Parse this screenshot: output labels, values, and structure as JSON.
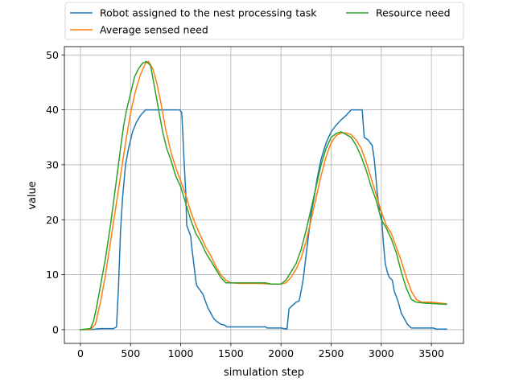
{
  "chart_data": {
    "type": "line",
    "title": "",
    "xlabel": "simulation step",
    "ylabel": "value",
    "xlim": [
      -160,
      3820
    ],
    "ylim": [
      -2.5,
      51.5
    ],
    "xticks": [
      0,
      500,
      1000,
      1500,
      2000,
      2500,
      3000,
      3500
    ],
    "yticks": [
      0,
      10,
      20,
      30,
      40,
      50
    ],
    "grid": true,
    "legend_position": "top-center, above plot",
    "legend_columns": 2,
    "series": [
      {
        "name": "Robot assigned to the nest processing task",
        "color": "#1f77b4",
        "points": [
          [
            0,
            0
          ],
          [
            100,
            0
          ],
          [
            200,
            0.2
          ],
          [
            330,
            0.2
          ],
          [
            360,
            0.5
          ],
          [
            380,
            8
          ],
          [
            400,
            18
          ],
          [
            420,
            24
          ],
          [
            450,
            30
          ],
          [
            480,
            33
          ],
          [
            520,
            36
          ],
          [
            560,
            37.8
          ],
          [
            600,
            39
          ],
          [
            650,
            40
          ],
          [
            700,
            40
          ],
          [
            750,
            40
          ],
          [
            800,
            40
          ],
          [
            850,
            40
          ],
          [
            900,
            40
          ],
          [
            950,
            40
          ],
          [
            990,
            40
          ],
          [
            1010,
            39.5
          ],
          [
            1020,
            36
          ],
          [
            1030,
            32
          ],
          [
            1050,
            25
          ],
          [
            1060,
            19
          ],
          [
            1080,
            18
          ],
          [
            1100,
            17
          ],
          [
            1110,
            15
          ],
          [
            1130,
            12
          ],
          [
            1150,
            9
          ],
          [
            1160,
            8
          ],
          [
            1200,
            7
          ],
          [
            1220,
            6.5
          ],
          [
            1250,
            5
          ],
          [
            1270,
            4
          ],
          [
            1300,
            3
          ],
          [
            1330,
            2
          ],
          [
            1360,
            1.5
          ],
          [
            1400,
            1
          ],
          [
            1440,
            0.8
          ],
          [
            1460,
            0.5
          ],
          [
            1550,
            0.5
          ],
          [
            1700,
            0.5
          ],
          [
            1850,
            0.5
          ],
          [
            1860,
            0.3
          ],
          [
            2000,
            0.3
          ],
          [
            2060,
            0.1
          ],
          [
            2070,
            2
          ],
          [
            2080,
            3.8
          ],
          [
            2120,
            4.5
          ],
          [
            2150,
            5
          ],
          [
            2180,
            5.2
          ],
          [
            2190,
            6
          ],
          [
            2210,
            8
          ],
          [
            2220,
            9
          ],
          [
            2240,
            12
          ],
          [
            2260,
            15
          ],
          [
            2280,
            18
          ],
          [
            2300,
            21
          ],
          [
            2330,
            24
          ],
          [
            2360,
            27.5
          ],
          [
            2400,
            31
          ],
          [
            2450,
            34
          ],
          [
            2500,
            36
          ],
          [
            2550,
            37.2
          ],
          [
            2600,
            38.2
          ],
          [
            2650,
            39
          ],
          [
            2700,
            40
          ],
          [
            2750,
            40
          ],
          [
            2790,
            40
          ],
          [
            2810,
            40
          ],
          [
            2830,
            35
          ],
          [
            2870,
            34.5
          ],
          [
            2910,
            33.5
          ],
          [
            2930,
            31
          ],
          [
            2960,
            25
          ],
          [
            2980,
            22
          ],
          [
            3000,
            21.5
          ],
          [
            3020,
            16
          ],
          [
            3040,
            12
          ],
          [
            3060,
            10.5
          ],
          [
            3080,
            9.5
          ],
          [
            3110,
            9
          ],
          [
            3130,
            7
          ],
          [
            3150,
            6
          ],
          [
            3170,
            5
          ],
          [
            3200,
            3
          ],
          [
            3230,
            2
          ],
          [
            3260,
            1
          ],
          [
            3300,
            0.3
          ],
          [
            3400,
            0.3
          ],
          [
            3520,
            0.3
          ],
          [
            3550,
            0.1
          ],
          [
            3650,
            0.1
          ]
        ]
      },
      {
        "name": "Average sensed need",
        "color": "#ff7f0e",
        "points": [
          [
            0,
            0
          ],
          [
            100,
            0
          ],
          [
            150,
            1
          ],
          [
            200,
            5
          ],
          [
            250,
            10
          ],
          [
            300,
            16
          ],
          [
            350,
            22
          ],
          [
            400,
            28
          ],
          [
            450,
            34
          ],
          [
            500,
            39.5
          ],
          [
            550,
            43.5
          ],
          [
            600,
            46.5
          ],
          [
            650,
            48.5
          ],
          [
            680,
            48.8
          ],
          [
            720,
            47.5
          ],
          [
            760,
            45
          ],
          [
            800,
            41.5
          ],
          [
            850,
            36.5
          ],
          [
            900,
            32.5
          ],
          [
            950,
            29.5
          ],
          [
            1000,
            27
          ],
          [
            1050,
            24.5
          ],
          [
            1100,
            21.5
          ],
          [
            1150,
            19
          ],
          [
            1200,
            17
          ],
          [
            1250,
            15
          ],
          [
            1300,
            13.5
          ],
          [
            1350,
            11.5
          ],
          [
            1400,
            10
          ],
          [
            1450,
            9
          ],
          [
            1500,
            8.5
          ],
          [
            1600,
            8.4
          ],
          [
            1700,
            8.4
          ],
          [
            1800,
            8.4
          ],
          [
            1900,
            8.3
          ],
          [
            2000,
            8.3
          ],
          [
            2050,
            8.5
          ],
          [
            2100,
            9.5
          ],
          [
            2150,
            11
          ],
          [
            2200,
            13
          ],
          [
            2250,
            16
          ],
          [
            2300,
            20
          ],
          [
            2350,
            24
          ],
          [
            2400,
            28
          ],
          [
            2450,
            31.5
          ],
          [
            2500,
            34
          ],
          [
            2550,
            35.3
          ],
          [
            2600,
            35.8
          ],
          [
            2650,
            35.8
          ],
          [
            2700,
            35.5
          ],
          [
            2750,
            34.5
          ],
          [
            2800,
            33
          ],
          [
            2850,
            30.5
          ],
          [
            2900,
            27.5
          ],
          [
            2950,
            24.5
          ],
          [
            3000,
            21.5
          ],
          [
            3050,
            19
          ],
          [
            3100,
            17.5
          ],
          [
            3150,
            15
          ],
          [
            3200,
            12.5
          ],
          [
            3250,
            9.5
          ],
          [
            3300,
            7
          ],
          [
            3350,
            5.5
          ],
          [
            3400,
            5
          ],
          [
            3500,
            5
          ],
          [
            3550,
            4.9
          ],
          [
            3650,
            4.7
          ]
        ]
      },
      {
        "name": "Resource need",
        "color": "#2ca02c",
        "points": [
          [
            0,
            0
          ],
          [
            100,
            0.2
          ],
          [
            130,
            1.5
          ],
          [
            160,
            4
          ],
          [
            200,
            8
          ],
          [
            250,
            13
          ],
          [
            300,
            19
          ],
          [
            350,
            26
          ],
          [
            400,
            33
          ],
          [
            430,
            37
          ],
          [
            460,
            40
          ],
          [
            500,
            43
          ],
          [
            540,
            46
          ],
          [
            580,
            47.5
          ],
          [
            620,
            48.5
          ],
          [
            660,
            48.8
          ],
          [
            700,
            48
          ],
          [
            740,
            44
          ],
          [
            780,
            40
          ],
          [
            820,
            36
          ],
          [
            860,
            33
          ],
          [
            900,
            31
          ],
          [
            950,
            28
          ],
          [
            1000,
            26
          ],
          [
            1050,
            23
          ],
          [
            1100,
            20
          ],
          [
            1150,
            17.5
          ],
          [
            1200,
            16
          ],
          [
            1250,
            14
          ],
          [
            1300,
            12.5
          ],
          [
            1350,
            11
          ],
          [
            1400,
            9.5
          ],
          [
            1450,
            8.5
          ],
          [
            1550,
            8.5
          ],
          [
            1650,
            8.5
          ],
          [
            1750,
            8.5
          ],
          [
            1850,
            8.5
          ],
          [
            1900,
            8.3
          ],
          [
            2000,
            8.3
          ],
          [
            2050,
            9
          ],
          [
            2100,
            10.5
          ],
          [
            2150,
            12
          ],
          [
            2200,
            14.5
          ],
          [
            2250,
            18
          ],
          [
            2300,
            22
          ],
          [
            2350,
            26
          ],
          [
            2400,
            30
          ],
          [
            2450,
            33
          ],
          [
            2500,
            35
          ],
          [
            2550,
            35.7
          ],
          [
            2600,
            36
          ],
          [
            2650,
            35.5
          ],
          [
            2700,
            35
          ],
          [
            2750,
            33.5
          ],
          [
            2800,
            31.5
          ],
          [
            2850,
            29
          ],
          [
            2900,
            26
          ],
          [
            2950,
            23.5
          ],
          [
            3000,
            20
          ],
          [
            3050,
            18.5
          ],
          [
            3100,
            16.5
          ],
          [
            3150,
            14
          ],
          [
            3200,
            10.5
          ],
          [
            3250,
            7.5
          ],
          [
            3300,
            5.5
          ],
          [
            3350,
            5
          ],
          [
            3450,
            4.8
          ],
          [
            3550,
            4.7
          ],
          [
            3650,
            4.6
          ]
        ]
      }
    ]
  }
}
